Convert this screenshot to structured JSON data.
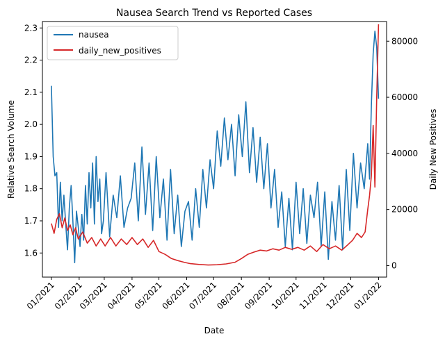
{
  "chart_data": {
    "type": "line",
    "title": "Nausea Search Trend vs Reported Cases",
    "xlabel": "Date",
    "ylabel": "Relative Search Volume",
    "y2label": "Daily New Positives",
    "x_ticks": [
      "01/2021",
      "02/2021",
      "03/2021",
      "04/2021",
      "05/2021",
      "06/2021",
      "07/2021",
      "08/2021",
      "09/2021",
      "10/2021",
      "11/2021",
      "12/2021",
      "01/2022"
    ],
    "y_ticks": [
      "1.6",
      "1.7",
      "1.8",
      "1.9",
      "2.0",
      "2.1",
      "2.2",
      "2.3"
    ],
    "y2_ticks": [
      "0",
      "20000",
      "40000",
      "60000",
      "80000"
    ],
    "ylim": [
      1.525,
      2.32
    ],
    "y2lim": [
      -4100,
      87000
    ],
    "grid": false,
    "legend_position": "top-left",
    "series": [
      {
        "name": "nausea",
        "axis": "left",
        "color": "#1f77b4",
        "x": [
          "2021-01-01",
          "2021-01-03",
          "2021-01-05",
          "2021-01-07",
          "2021-01-09",
          "2021-01-11",
          "2021-01-13",
          "2021-01-15",
          "2021-01-17",
          "2021-01-19",
          "2021-01-21",
          "2021-01-23",
          "2021-01-25",
          "2021-01-27",
          "2021-01-29",
          "2021-01-31",
          "2021-02-02",
          "2021-02-04",
          "2021-02-06",
          "2021-02-08",
          "2021-02-10",
          "2021-02-12",
          "2021-02-14",
          "2021-02-16",
          "2021-02-18",
          "2021-02-20",
          "2021-02-22",
          "2021-02-24",
          "2021-02-26",
          "2021-02-28",
          "2021-03-03",
          "2021-03-07",
          "2021-03-11",
          "2021-03-15",
          "2021-03-19",
          "2021-03-23",
          "2021-03-27",
          "2021-03-31",
          "2021-04-04",
          "2021-04-08",
          "2021-04-12",
          "2021-04-16",
          "2021-04-20",
          "2021-04-24",
          "2021-04-28",
          "2021-05-02",
          "2021-05-06",
          "2021-05-10",
          "2021-05-14",
          "2021-05-18",
          "2021-05-22",
          "2021-05-26",
          "2021-05-30",
          "2021-06-03",
          "2021-06-07",
          "2021-06-11",
          "2021-06-15",
          "2021-06-19",
          "2021-06-23",
          "2021-06-27",
          "2021-07-01",
          "2021-07-05",
          "2021-07-09",
          "2021-07-13",
          "2021-07-17",
          "2021-07-21",
          "2021-07-25",
          "2021-07-29",
          "2021-08-02",
          "2021-08-06",
          "2021-08-10",
          "2021-08-14",
          "2021-08-18",
          "2021-08-22",
          "2021-08-26",
          "2021-08-30",
          "2021-09-03",
          "2021-09-07",
          "2021-09-11",
          "2021-09-15",
          "2021-09-19",
          "2021-09-23",
          "2021-09-27",
          "2021-10-01",
          "2021-10-05",
          "2021-10-09",
          "2021-10-13",
          "2021-10-17",
          "2021-10-21",
          "2021-10-25",
          "2021-10-29",
          "2021-11-02",
          "2021-11-06",
          "2021-11-10",
          "2021-11-14",
          "2021-11-18",
          "2021-11-22",
          "2021-11-26",
          "2021-11-30",
          "2021-12-04",
          "2021-12-08",
          "2021-12-12",
          "2021-12-16",
          "2021-12-20",
          "2021-12-22",
          "2021-12-24",
          "2021-12-26",
          "2021-12-28",
          "2021-12-30",
          "2022-01-01"
        ],
        "y": [
          2.12,
          1.9,
          1.84,
          1.85,
          1.68,
          1.82,
          1.7,
          1.78,
          1.69,
          1.61,
          1.74,
          1.81,
          1.7,
          1.57,
          1.73,
          1.68,
          1.62,
          1.72,
          1.64,
          1.81,
          1.69,
          1.85,
          1.74,
          1.88,
          1.69,
          1.9,
          1.76,
          1.83,
          1.66,
          1.7,
          1.85,
          1.65,
          1.78,
          1.71,
          1.84,
          1.68,
          1.74,
          1.77,
          1.88,
          1.7,
          1.93,
          1.72,
          1.88,
          1.67,
          1.9,
          1.71,
          1.83,
          1.64,
          1.86,
          1.66,
          1.78,
          1.62,
          1.73,
          1.76,
          1.64,
          1.8,
          1.68,
          1.86,
          1.74,
          1.89,
          1.8,
          1.98,
          1.87,
          2.02,
          1.89,
          2.0,
          1.84,
          2.03,
          1.9,
          2.07,
          1.85,
          1.99,
          1.82,
          1.96,
          1.8,
          1.94,
          1.74,
          1.86,
          1.68,
          1.79,
          1.62,
          1.77,
          1.61,
          1.82,
          1.66,
          1.8,
          1.63,
          1.78,
          1.71,
          1.82,
          1.62,
          1.79,
          1.58,
          1.76,
          1.64,
          1.81,
          1.61,
          1.86,
          1.67,
          1.91,
          1.74,
          1.88,
          1.8,
          1.94,
          1.83,
          2.06,
          2.22,
          2.29,
          2.24,
          2.08
        ]
      },
      {
        "name": "daily_new_positives",
        "axis": "right",
        "color": "#d62728",
        "x": [
          "2021-01-01",
          "2021-01-04",
          "2021-01-07",
          "2021-01-10",
          "2021-01-13",
          "2021-01-16",
          "2021-01-19",
          "2021-01-22",
          "2021-01-25",
          "2021-01-28",
          "2021-01-31",
          "2021-02-05",
          "2021-02-10",
          "2021-02-15",
          "2021-02-20",
          "2021-02-25",
          "2021-03-02",
          "2021-03-08",
          "2021-03-14",
          "2021-03-20",
          "2021-03-26",
          "2021-04-01",
          "2021-04-07",
          "2021-04-13",
          "2021-04-19",
          "2021-04-25",
          "2021-05-01",
          "2021-05-08",
          "2021-05-15",
          "2021-05-22",
          "2021-05-29",
          "2021-06-05",
          "2021-06-15",
          "2021-06-25",
          "2021-07-05",
          "2021-07-15",
          "2021-07-25",
          "2021-08-01",
          "2021-08-08",
          "2021-08-15",
          "2021-08-22",
          "2021-08-29",
          "2021-09-05",
          "2021-09-12",
          "2021-09-19",
          "2021-09-26",
          "2021-10-03",
          "2021-10-10",
          "2021-10-17",
          "2021-10-24",
          "2021-10-31",
          "2021-11-07",
          "2021-11-14",
          "2021-11-21",
          "2021-11-28",
          "2021-12-03",
          "2021-12-08",
          "2021-12-13",
          "2021-12-17",
          "2021-12-20",
          "2021-12-22",
          "2021-12-24",
          "2021-12-26",
          "2021-12-28",
          "2021-12-30",
          "2022-01-01"
        ],
        "y": [
          15000,
          11500,
          16500,
          18500,
          13500,
          17000,
          12500,
          14500,
          11000,
          13500,
          9500,
          12000,
          8000,
          10000,
          7000,
          9500,
          7000,
          10000,
          7000,
          9500,
          7500,
          10000,
          7500,
          9500,
          6500,
          9000,
          5000,
          4000,
          2500,
          1800,
          1200,
          700,
          400,
          200,
          300,
          600,
          1200,
          2500,
          4000,
          4800,
          5500,
          5200,
          6000,
          5500,
          6500,
          5800,
          6500,
          5500,
          7000,
          5000,
          7500,
          6000,
          7000,
          5500,
          7500,
          9000,
          11500,
          10000,
          12000,
          20000,
          25000,
          32000,
          50000,
          28000,
          60000,
          86000
        ]
      }
    ]
  }
}
